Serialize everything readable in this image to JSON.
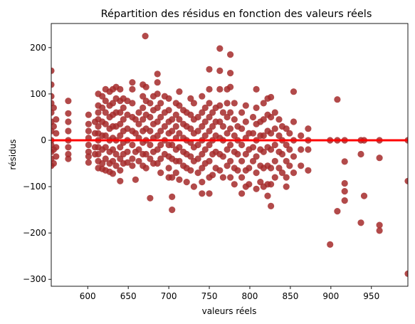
{
  "chart_data": {
    "type": "scatter",
    "title": "Répartition des résidus en fonction des valeurs réels",
    "xlabel": "valeurs réels",
    "ylabel": "résidus",
    "xlim": [
      555,
      995
    ],
    "ylim": [
      -315,
      252
    ],
    "xticks": [
      600,
      650,
      700,
      750,
      800,
      850,
      900,
      950
    ],
    "yticks": [
      -300,
      -200,
      -100,
      0,
      100,
      200
    ],
    "grid": false,
    "legend": "none",
    "colors": {
      "points": "#a52a2a",
      "fit_line": "#ff0000"
    },
    "fit_line": {
      "x": [
        555,
        995
      ],
      "y": [
        0,
        0
      ]
    },
    "points": [
      [
        555,
        150
      ],
      [
        555,
        120
      ],
      [
        555,
        95
      ],
      [
        555,
        80
      ],
      [
        555,
        60
      ],
      [
        555,
        40
      ],
      [
        555,
        20
      ],
      [
        555,
        0
      ],
      [
        555,
        -10
      ],
      [
        555,
        -25
      ],
      [
        555,
        -40
      ],
      [
        555,
        -55
      ],
      [
        558,
        70
      ],
      [
        558,
        30
      ],
      [
        558,
        -20
      ],
      [
        558,
        -50
      ],
      [
        561,
        45
      ],
      [
        561,
        15
      ],
      [
        561,
        -15
      ],
      [
        561,
        -35
      ],
      [
        576,
        85
      ],
      [
        576,
        58
      ],
      [
        576,
        40
      ],
      [
        576,
        20
      ],
      [
        576,
        0
      ],
      [
        576,
        -15
      ],
      [
        576,
        -30
      ],
      [
        576,
        -40
      ],
      [
        601,
        55
      ],
      [
        601,
        35
      ],
      [
        601,
        20
      ],
      [
        601,
        5
      ],
      [
        601,
        -10
      ],
      [
        601,
        -25
      ],
      [
        601,
        -35
      ],
      [
        601,
        -48
      ],
      [
        609,
        40
      ],
      [
        609,
        15
      ],
      [
        609,
        -15
      ],
      [
        609,
        -30
      ],
      [
        613,
        100
      ],
      [
        613,
        75
      ],
      [
        613,
        60
      ],
      [
        613,
        45
      ],
      [
        613,
        30
      ],
      [
        613,
        15
      ],
      [
        613,
        0
      ],
      [
        613,
        -15
      ],
      [
        613,
        -30
      ],
      [
        613,
        -45
      ],
      [
        613,
        -60
      ],
      [
        618,
        95
      ],
      [
        618,
        70
      ],
      [
        618,
        40
      ],
      [
        618,
        10
      ],
      [
        618,
        -20
      ],
      [
        618,
        -50
      ],
      [
        618,
        -62
      ],
      [
        622,
        110
      ],
      [
        622,
        85
      ],
      [
        622,
        60
      ],
      [
        622,
        35
      ],
      [
        622,
        10
      ],
      [
        622,
        -15
      ],
      [
        622,
        -40
      ],
      [
        622,
        -65
      ],
      [
        627,
        105
      ],
      [
        627,
        75
      ],
      [
        627,
        50
      ],
      [
        627,
        25
      ],
      [
        627,
        0
      ],
      [
        627,
        -25
      ],
      [
        627,
        -50
      ],
      [
        627,
        -68
      ],
      [
        631,
        110
      ],
      [
        631,
        80
      ],
      [
        631,
        55
      ],
      [
        631,
        30
      ],
      [
        631,
        5
      ],
      [
        631,
        -20
      ],
      [
        631,
        -45
      ],
      [
        631,
        -72
      ],
      [
        635,
        115
      ],
      [
        635,
        90
      ],
      [
        635,
        60
      ],
      [
        635,
        30
      ],
      [
        635,
        0
      ],
      [
        635,
        -30
      ],
      [
        635,
        -55
      ],
      [
        640,
        110
      ],
      [
        640,
        85
      ],
      [
        640,
        60
      ],
      [
        640,
        35
      ],
      [
        640,
        10
      ],
      [
        640,
        -15
      ],
      [
        640,
        -40
      ],
      [
        640,
        -65
      ],
      [
        640,
        -88
      ],
      [
        644,
        90
      ],
      [
        644,
        70
      ],
      [
        644,
        45
      ],
      [
        644,
        20
      ],
      [
        644,
        -5
      ],
      [
        644,
        -30
      ],
      [
        644,
        -50
      ],
      [
        649,
        85
      ],
      [
        649,
        55
      ],
      [
        649,
        25
      ],
      [
        649,
        0
      ],
      [
        649,
        -25
      ],
      [
        649,
        -48
      ],
      [
        655,
        125
      ],
      [
        655,
        110
      ],
      [
        655,
        80
      ],
      [
        655,
        50
      ],
      [
        655,
        20
      ],
      [
        655,
        -10
      ],
      [
        655,
        -40
      ],
      [
        655,
        -55
      ],
      [
        659,
        45
      ],
      [
        659,
        15
      ],
      [
        659,
        -25
      ],
      [
        659,
        -85
      ],
      [
        663,
        60
      ],
      [
        663,
        35
      ],
      [
        663,
        5
      ],
      [
        663,
        -20
      ],
      [
        663,
        -45
      ],
      [
        668,
        120
      ],
      [
        668,
        95
      ],
      [
        668,
        70
      ],
      [
        668,
        45
      ],
      [
        668,
        20
      ],
      [
        668,
        -5
      ],
      [
        668,
        -30
      ],
      [
        668,
        -55
      ],
      [
        671,
        225
      ],
      [
        672,
        115
      ],
      [
        672,
        85
      ],
      [
        672,
        55
      ],
      [
        672,
        25
      ],
      [
        672,
        0
      ],
      [
        672,
        -30
      ],
      [
        672,
        -60
      ],
      [
        677,
        80
      ],
      [
        677,
        50
      ],
      [
        677,
        20
      ],
      [
        677,
        -10
      ],
      [
        677,
        -40
      ],
      [
        677,
        -125
      ],
      [
        681,
        95
      ],
      [
        681,
        65
      ],
      [
        681,
        35
      ],
      [
        681,
        5
      ],
      [
        681,
        -25
      ],
      [
        681,
        -50
      ],
      [
        686,
        143
      ],
      [
        686,
        125
      ],
      [
        686,
        100
      ],
      [
        686,
        70
      ],
      [
        686,
        40
      ],
      [
        686,
        10
      ],
      [
        686,
        -20
      ],
      [
        686,
        -50
      ],
      [
        690,
        80
      ],
      [
        690,
        50
      ],
      [
        690,
        20
      ],
      [
        690,
        -10
      ],
      [
        690,
        -40
      ],
      [
        690,
        -70
      ],
      [
        695,
        95
      ],
      [
        695,
        60
      ],
      [
        695,
        30
      ],
      [
        695,
        0
      ],
      [
        695,
        -30
      ],
      [
        700,
        90
      ],
      [
        700,
        65
      ],
      [
        700,
        40
      ],
      [
        700,
        15
      ],
      [
        700,
        -10
      ],
      [
        700,
        -35
      ],
      [
        700,
        -60
      ],
      [
        700,
        -80
      ],
      [
        704,
        45
      ],
      [
        704,
        20
      ],
      [
        704,
        -10
      ],
      [
        704,
        -40
      ],
      [
        704,
        -80
      ],
      [
        704,
        -122
      ],
      [
        704,
        -150
      ],
      [
        709,
        80
      ],
      [
        709,
        55
      ],
      [
        709,
        30
      ],
      [
        709,
        5
      ],
      [
        709,
        -20
      ],
      [
        709,
        -45
      ],
      [
        709,
        -70
      ],
      [
        713,
        105
      ],
      [
        713,
        75
      ],
      [
        713,
        45
      ],
      [
        713,
        15
      ],
      [
        713,
        -15
      ],
      [
        713,
        -45
      ],
      [
        713,
        -85
      ],
      [
        718,
        65
      ],
      [
        718,
        35
      ],
      [
        718,
        5
      ],
      [
        718,
        -25
      ],
      [
        718,
        -55
      ],
      [
        722,
        60
      ],
      [
        722,
        30
      ],
      [
        722,
        0
      ],
      [
        722,
        -30
      ],
      [
        722,
        -60
      ],
      [
        722,
        -90
      ],
      [
        727,
        90
      ],
      [
        727,
        55
      ],
      [
        727,
        25
      ],
      [
        727,
        -5
      ],
      [
        727,
        -35
      ],
      [
        727,
        -65
      ],
      [
        731,
        80
      ],
      [
        731,
        45
      ],
      [
        731,
        15
      ],
      [
        731,
        -15
      ],
      [
        731,
        -45
      ],
      [
        731,
        -100
      ],
      [
        736,
        50
      ],
      [
        736,
        20
      ],
      [
        736,
        -10
      ],
      [
        736,
        -40
      ],
      [
        736,
        -70
      ],
      [
        741,
        95
      ],
      [
        741,
        60
      ],
      [
        741,
        30
      ],
      [
        741,
        0
      ],
      [
        741,
        -30
      ],
      [
        741,
        -60
      ],
      [
        741,
        -90
      ],
      [
        741,
        -115
      ],
      [
        745,
        70
      ],
      [
        745,
        40
      ],
      [
        745,
        10
      ],
      [
        745,
        -20
      ],
      [
        745,
        -50
      ],
      [
        750,
        153
      ],
      [
        750,
        110
      ],
      [
        750,
        80
      ],
      [
        750,
        50
      ],
      [
        750,
        20
      ],
      [
        750,
        -10
      ],
      [
        750,
        -45
      ],
      [
        750,
        -80
      ],
      [
        750,
        -115
      ],
      [
        754,
        60
      ],
      [
        754,
        30
      ],
      [
        754,
        0
      ],
      [
        754,
        -30
      ],
      [
        754,
        -75
      ],
      [
        758,
        70
      ],
      [
        758,
        40
      ],
      [
        758,
        10
      ],
      [
        758,
        -25
      ],
      [
        758,
        -60
      ],
      [
        763,
        198
      ],
      [
        763,
        150
      ],
      [
        763,
        110
      ],
      [
        763,
        75
      ],
      [
        763,
        40
      ],
      [
        763,
        5
      ],
      [
        763,
        -30
      ],
      [
        763,
        -65
      ],
      [
        767,
        60
      ],
      [
        767,
        30
      ],
      [
        767,
        0
      ],
      [
        767,
        -35
      ],
      [
        767,
        -80
      ],
      [
        772,
        110
      ],
      [
        772,
        80
      ],
      [
        772,
        50
      ],
      [
        772,
        15
      ],
      [
        772,
        -20
      ],
      [
        772,
        -55
      ],
      [
        776,
        185
      ],
      [
        776,
        145
      ],
      [
        776,
        115
      ],
      [
        776,
        60
      ],
      [
        776,
        25
      ],
      [
        776,
        -10
      ],
      [
        776,
        -45
      ],
      [
        776,
        -80
      ],
      [
        781,
        80
      ],
      [
        781,
        45
      ],
      [
        781,
        10
      ],
      [
        781,
        -25
      ],
      [
        781,
        -60
      ],
      [
        781,
        -95
      ],
      [
        785,
        30
      ],
      [
        785,
        0
      ],
      [
        785,
        -30
      ],
      [
        785,
        -65
      ],
      [
        790,
        60
      ],
      [
        790,
        25
      ],
      [
        790,
        -10
      ],
      [
        790,
        -45
      ],
      [
        790,
        -80
      ],
      [
        790,
        -115
      ],
      [
        795,
        75
      ],
      [
        795,
        40
      ],
      [
        795,
        5
      ],
      [
        795,
        -30
      ],
      [
        795,
        -65
      ],
      [
        795,
        -100
      ],
      [
        799,
        15
      ],
      [
        799,
        -20
      ],
      [
        799,
        -60
      ],
      [
        799,
        -95
      ],
      [
        804,
        50
      ],
      [
        804,
        15
      ],
      [
        804,
        -15
      ],
      [
        804,
        -45
      ],
      [
        808,
        110
      ],
      [
        808,
        70
      ],
      [
        808,
        35
      ],
      [
        808,
        0
      ],
      [
        808,
        -35
      ],
      [
        808,
        -70
      ],
      [
        808,
        -105
      ],
      [
        813,
        40
      ],
      [
        813,
        10
      ],
      [
        813,
        -20
      ],
      [
        813,
        -55
      ],
      [
        813,
        -90
      ],
      [
        817,
        80
      ],
      [
        817,
        45
      ],
      [
        817,
        10
      ],
      [
        817,
        -25
      ],
      [
        817,
        -60
      ],
      [
        817,
        -100
      ],
      [
        822,
        90
      ],
      [
        822,
        55
      ],
      [
        822,
        20
      ],
      [
        822,
        -15
      ],
      [
        822,
        -55
      ],
      [
        822,
        -95
      ],
      [
        822,
        -120
      ],
      [
        826,
        93
      ],
      [
        826,
        50
      ],
      [
        826,
        15
      ],
      [
        826,
        -20
      ],
      [
        826,
        -60
      ],
      [
        826,
        -95
      ],
      [
        826,
        -142
      ],
      [
        831,
        60
      ],
      [
        831,
        25
      ],
      [
        831,
        -10
      ],
      [
        831,
        -45
      ],
      [
        831,
        -80
      ],
      [
        836,
        45
      ],
      [
        836,
        10
      ],
      [
        836,
        -25
      ],
      [
        836,
        -60
      ],
      [
        840,
        30
      ],
      [
        840,
        0
      ],
      [
        840,
        -30
      ],
      [
        840,
        -70
      ],
      [
        845,
        25
      ],
      [
        845,
        -10
      ],
      [
        845,
        -45
      ],
      [
        845,
        -80
      ],
      [
        845,
        -100
      ],
      [
        849,
        15
      ],
      [
        849,
        -20
      ],
      [
        849,
        -55
      ],
      [
        854,
        105
      ],
      [
        854,
        40
      ],
      [
        854,
        0
      ],
      [
        854,
        -35
      ],
      [
        854,
        -70
      ],
      [
        863,
        10
      ],
      [
        863,
        -20
      ],
      [
        863,
        -55
      ],
      [
        872,
        25
      ],
      [
        872,
        0
      ],
      [
        872,
        -20
      ],
      [
        872,
        -65
      ],
      [
        899,
        0
      ],
      [
        899,
        -225
      ],
      [
        908,
        88
      ],
      [
        908,
        0
      ],
      [
        908,
        -153
      ],
      [
        917,
        0
      ],
      [
        917,
        -46
      ],
      [
        917,
        -93
      ],
      [
        917,
        -110
      ],
      [
        917,
        -130
      ],
      [
        937,
        0
      ],
      [
        937,
        -30
      ],
      [
        937,
        -178
      ],
      [
        941,
        0
      ],
      [
        941,
        -120
      ],
      [
        960,
        0
      ],
      [
        960,
        -38
      ],
      [
        960,
        -183
      ],
      [
        960,
        -195
      ],
      [
        995,
        0
      ],
      [
        995,
        -88
      ],
      [
        995,
        -288
      ]
    ]
  }
}
